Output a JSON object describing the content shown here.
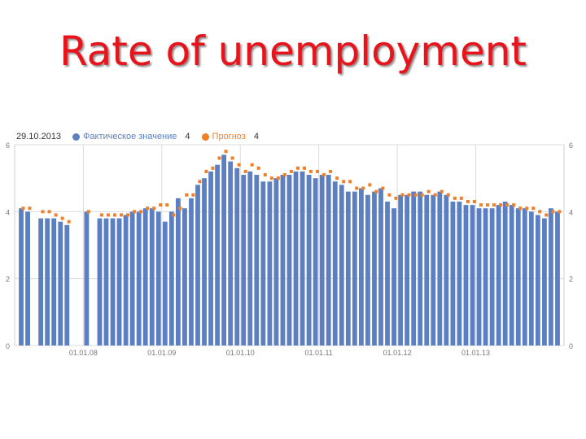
{
  "slide": {
    "title": "Rate of unemployment"
  },
  "legend": {
    "date": "29.10.2013",
    "items": [
      {
        "label": "Фактическое значение",
        "count": "4",
        "color": "#5b7fc0"
      },
      {
        "label": "Прогноз",
        "count": "4",
        "color": "#f07f2a"
      }
    ]
  },
  "chart_data": {
    "type": "bar",
    "ylim": [
      0,
      6
    ],
    "y_ticks": [
      "0",
      "2",
      "4",
      "6"
    ],
    "x_tick_labels": [
      "01.01.08",
      "01.01.09",
      "01.01.10",
      "01.01.11",
      "01.01.12",
      "01.01.13"
    ],
    "grid": true,
    "legend_position": "top-left",
    "series": [
      {
        "name": "Фактическое значение",
        "kind": "bar",
        "color": "#5b7fc0",
        "values": [
          4.1,
          4.0,
          null,
          3.8,
          3.8,
          3.8,
          3.7,
          3.6,
          null,
          null,
          4.0,
          null,
          3.8,
          3.8,
          3.8,
          3.8,
          3.9,
          4.0,
          4.0,
          4.1,
          4.1,
          4.0,
          3.7,
          4.0,
          4.4,
          4.1,
          4.4,
          4.8,
          5.0,
          5.2,
          5.4,
          5.7,
          5.5,
          5.3,
          5.1,
          5.2,
          5.1,
          4.9,
          4.9,
          5.0,
          5.1,
          5.1,
          5.2,
          5.2,
          5.1,
          5.0,
          5.1,
          5.1,
          4.9,
          4.8,
          4.6,
          4.6,
          4.7,
          4.5,
          4.6,
          4.7,
          4.3,
          4.1,
          4.5,
          4.5,
          4.6,
          4.6,
          4.5,
          4.5,
          4.6,
          4.5,
          4.3,
          4.3,
          4.2,
          4.2,
          4.1,
          4.1,
          4.1,
          4.2,
          4.3,
          4.2,
          4.1,
          4.1,
          4.0,
          3.9,
          3.8,
          4.1,
          4.0
        ]
      },
      {
        "name": "Прогноз",
        "kind": "dot",
        "color": "#f07f2a",
        "values": [
          4.1,
          4.1,
          null,
          4.0,
          4.0,
          3.9,
          3.8,
          3.7,
          null,
          null,
          4.0,
          null,
          3.9,
          3.9,
          3.9,
          3.9,
          3.9,
          4.0,
          4.0,
          4.1,
          4.1,
          4.2,
          4.2,
          3.9,
          4.1,
          4.5,
          4.5,
          4.9,
          5.2,
          5.3,
          5.6,
          5.8,
          5.6,
          5.4,
          5.2,
          5.4,
          5.3,
          5.1,
          5.0,
          5.0,
          5.1,
          5.2,
          5.3,
          5.3,
          5.2,
          5.2,
          5.1,
          5.2,
          5.0,
          4.9,
          4.9,
          4.7,
          4.7,
          4.8,
          4.6,
          4.7,
          4.5,
          4.4,
          4.5,
          4.5,
          4.5,
          4.5,
          4.6,
          4.5,
          4.6,
          4.5,
          4.4,
          4.4,
          4.3,
          4.3,
          4.2,
          4.2,
          4.2,
          4.2,
          4.2,
          4.2,
          4.1,
          4.1,
          4.1,
          4.0,
          3.9,
          4.0,
          4.0
        ]
      }
    ]
  }
}
